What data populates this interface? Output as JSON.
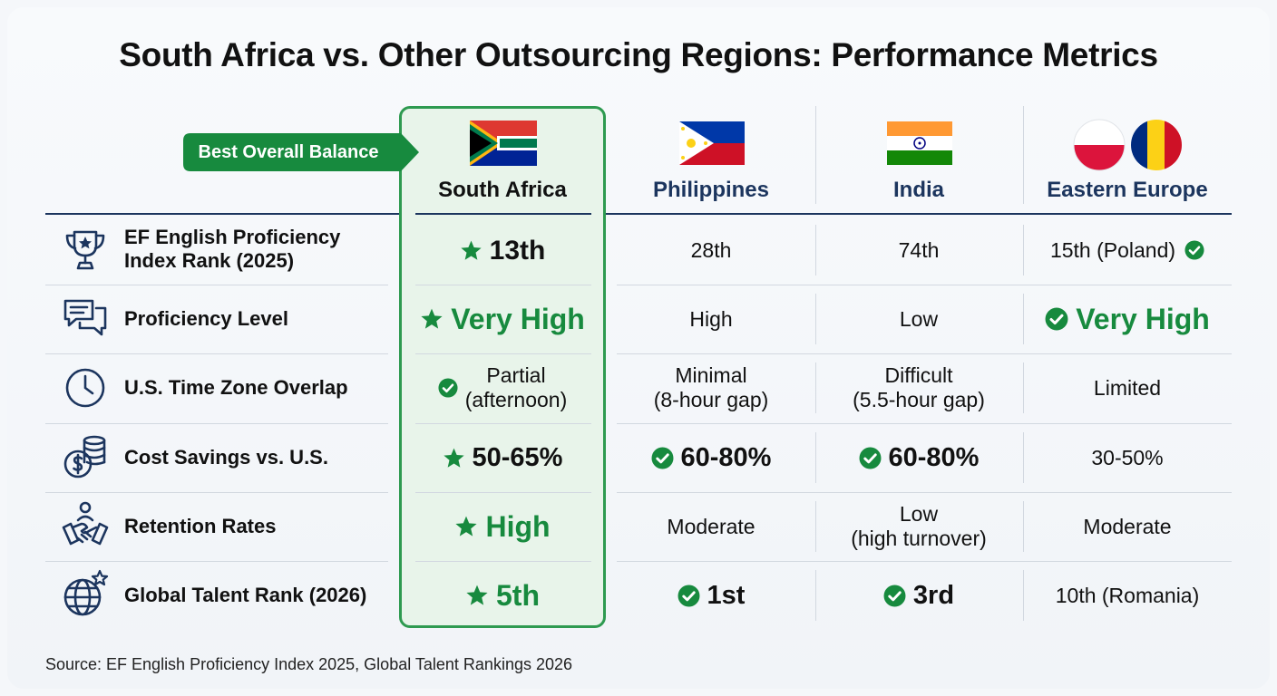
{
  "title": "South Africa vs. Other Outsourcing Regions: Performance Metrics",
  "badge": "Best Overall Balance",
  "source": "Source: EF English Proficiency Index 2025, Global Talent Rankings 2026",
  "colors": {
    "accent_green": "#178a3e",
    "header_navy": "#1c355e",
    "highlight_bg": "#e8f4ea"
  },
  "chart_data": {
    "type": "table",
    "columns": [
      "South Africa",
      "Philippines",
      "India",
      "Eastern Europe"
    ],
    "rows": [
      {
        "metric": "EF English Proficiency Index Rank (2025)",
        "icon": "trophy-icon",
        "values": [
          "13th",
          "28th",
          "74th",
          "15th (Poland)"
        ],
        "marks": [
          "star",
          "",
          "",
          "check"
        ]
      },
      {
        "metric": "Proficiency Level",
        "icon": "chat-bubbles-icon",
        "values": [
          "Very High",
          "High",
          "Low",
          "Very High"
        ],
        "marks": [
          "star",
          "",
          "",
          "check"
        ]
      },
      {
        "metric": "U.S. Time Zone Overlap",
        "icon": "clock-icon",
        "values": [
          "Partial (afternoon)",
          "Minimal (8-hour gap)",
          "Difficult (5.5-hour gap)",
          "Limited"
        ],
        "marks": [
          "check",
          "",
          "",
          ""
        ]
      },
      {
        "metric": "Cost Savings vs. U.S.",
        "icon": "coins-dollar-icon",
        "values": [
          "50-65%",
          "60-80%",
          "60-80%",
          "30-50%"
        ],
        "marks": [
          "star",
          "check",
          "check",
          ""
        ]
      },
      {
        "metric": "Retention Rates",
        "icon": "handshake-icon",
        "values": [
          "High",
          "Moderate",
          "Low (high turnover)",
          "Moderate"
        ],
        "marks": [
          "star",
          "",
          "",
          ""
        ]
      },
      {
        "metric": "Global Talent Rank (2026)",
        "icon": "globe-star-icon",
        "values": [
          "5th",
          "1st",
          "3rd",
          "10th (Romania)"
        ],
        "marks": [
          "star",
          "check",
          "check",
          ""
        ]
      }
    ]
  }
}
